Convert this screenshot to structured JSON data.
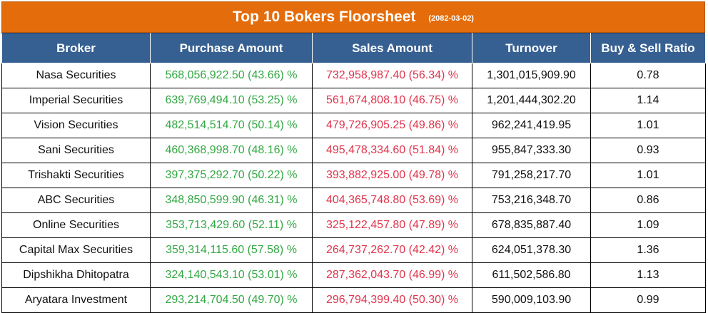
{
  "title": "Top 10 Bokers Floorsheet",
  "date": "(2082-03-02)",
  "colors": {
    "header_bar": "#e46c0a",
    "column_header": "#376092",
    "purchase": "#33a844",
    "sales": "#e0344c"
  },
  "columns": [
    "Broker",
    "Purchase Amount",
    "Sales Amount",
    "Turnover",
    "Buy & Sell Ratio"
  ],
  "rows": [
    {
      "broker": "Nasa Securities",
      "purchase": "568,056,922.50 (43.66) %",
      "sales": "732,958,987.40 (56.34) %",
      "turnover": "1,301,015,909.90",
      "ratio": "0.78"
    },
    {
      "broker": "Imperial Securities",
      "purchase": "639,769,494.10 (53.25) %",
      "sales": "561,674,808.10 (46.75) %",
      "turnover": "1,201,444,302.20",
      "ratio": "1.14"
    },
    {
      "broker": "Vision Securities",
      "purchase": "482,514,514.70 (50.14) %",
      "sales": "479,726,905.25 (49.86) %",
      "turnover": "962,241,419.95",
      "ratio": "1.01"
    },
    {
      "broker": "Sani Securities",
      "purchase": "460,368,998.70 (48.16) %",
      "sales": "495,478,334.60 (51.84) %",
      "turnover": "955,847,333.30",
      "ratio": "0.93"
    },
    {
      "broker": "Trishakti Securities",
      "purchase": "397,375,292.70 (50.22) %",
      "sales": "393,882,925.00 (49.78) %",
      "turnover": "791,258,217.70",
      "ratio": "1.01"
    },
    {
      "broker": "ABC Securities",
      "purchase": "348,850,599.90 (46.31) %",
      "sales": "404,365,748.80 (53.69) %",
      "turnover": "753,216,348.70",
      "ratio": "0.86"
    },
    {
      "broker": "Online Securities",
      "purchase": "353,713,429.60 (52.11) %",
      "sales": "325,122,457.80 (47.89) %",
      "turnover": "678,835,887.40",
      "ratio": "1.09"
    },
    {
      "broker": "Capital Max Securities",
      "purchase": "359,314,115.60 (57.58) %",
      "sales": "264,737,262.70 (42.42) %",
      "turnover": "624,051,378.30",
      "ratio": "1.36"
    },
    {
      "broker": "Dipshikha Dhitopatra",
      "purchase": "324,140,543.10 (53.01) %",
      "sales": "287,362,043.70 (46.99) %",
      "turnover": "611,502,586.80",
      "ratio": "1.13"
    },
    {
      "broker": "Aryatara Investment",
      "purchase": "293,214,704.50 (49.70) %",
      "sales": "296,794,399.40 (50.30) %",
      "turnover": "590,009,103.90",
      "ratio": "0.99"
    }
  ]
}
